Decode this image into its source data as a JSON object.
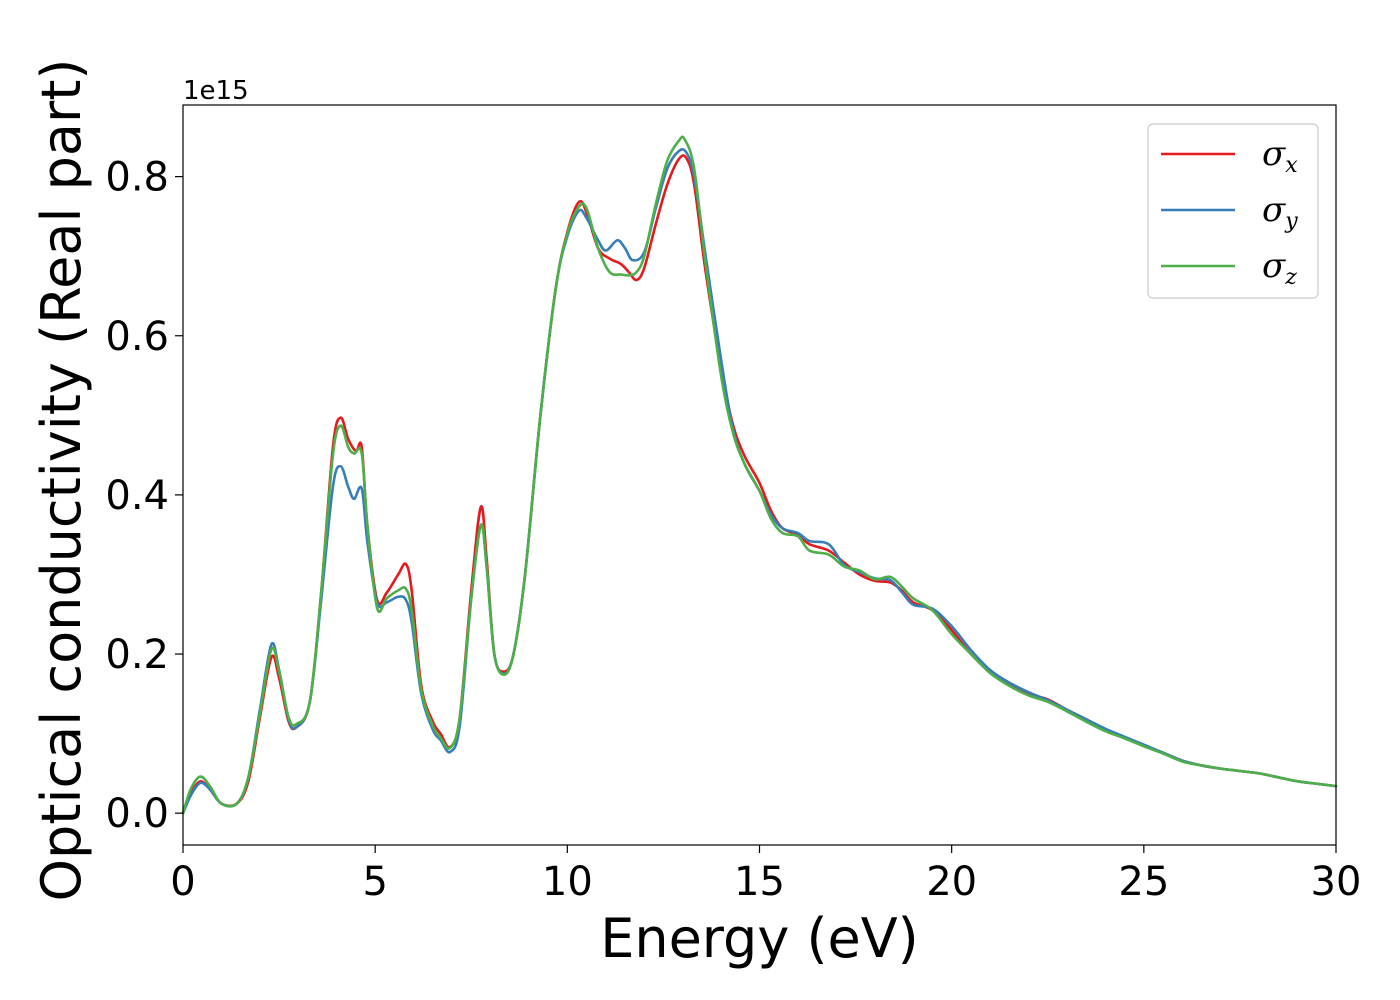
{
  "chart_data": {
    "type": "line",
    "xlabel": "Energy (eV)",
    "ylabel": "Optical conductivity (Real part)",
    "y_offset_text": "1e15",
    "xlim": [
      0,
      30
    ],
    "ylim": [
      -0.04,
      0.89
    ],
    "xticks": [
      0,
      5,
      10,
      15,
      20,
      25,
      30
    ],
    "xtick_labels": [
      "0",
      "5",
      "10",
      "15",
      "20",
      "25",
      "30"
    ],
    "yticks": [
      0.0,
      0.2,
      0.4,
      0.6,
      0.8
    ],
    "ytick_labels": [
      "0.0",
      "0.2",
      "0.4",
      "0.6",
      "0.8"
    ],
    "grid": false,
    "legend_position": "top-right",
    "series": [
      {
        "name": "σ_x",
        "symbol": "σ",
        "subscript": "x",
        "color": "#e41a1c",
        "points": [
          [
            0,
            0.0
          ],
          [
            0.2,
            0.025
          ],
          [
            0.45,
            0.04
          ],
          [
            0.7,
            0.03
          ],
          [
            1.0,
            0.012
          ],
          [
            1.4,
            0.012
          ],
          [
            1.7,
            0.04
          ],
          [
            2.0,
            0.12
          ],
          [
            2.3,
            0.196
          ],
          [
            2.5,
            0.17
          ],
          [
            2.75,
            0.115
          ],
          [
            2.95,
            0.108
          ],
          [
            3.3,
            0.14
          ],
          [
            3.6,
            0.28
          ],
          [
            3.9,
            0.46
          ],
          [
            4.1,
            0.497
          ],
          [
            4.3,
            0.47
          ],
          [
            4.5,
            0.455
          ],
          [
            4.65,
            0.46
          ],
          [
            4.8,
            0.36
          ],
          [
            5.05,
            0.268
          ],
          [
            5.3,
            0.277
          ],
          [
            5.6,
            0.3
          ],
          [
            5.8,
            0.313
          ],
          [
            5.95,
            0.28
          ],
          [
            6.2,
            0.16
          ],
          [
            6.5,
            0.115
          ],
          [
            6.7,
            0.1
          ],
          [
            6.95,
            0.083
          ],
          [
            7.2,
            0.12
          ],
          [
            7.5,
            0.28
          ],
          [
            7.75,
            0.385
          ],
          [
            7.9,
            0.32
          ],
          [
            8.1,
            0.2
          ],
          [
            8.35,
            0.178
          ],
          [
            8.6,
            0.2
          ],
          [
            8.9,
            0.3
          ],
          [
            9.3,
            0.5
          ],
          [
            9.7,
            0.66
          ],
          [
            10.0,
            0.73
          ],
          [
            10.3,
            0.768
          ],
          [
            10.5,
            0.755
          ],
          [
            10.8,
            0.71
          ],
          [
            11.1,
            0.697
          ],
          [
            11.4,
            0.69
          ],
          [
            11.6,
            0.68
          ],
          [
            11.8,
            0.67
          ],
          [
            12.0,
            0.685
          ],
          [
            12.3,
            0.74
          ],
          [
            12.6,
            0.79
          ],
          [
            12.9,
            0.822
          ],
          [
            13.1,
            0.823
          ],
          [
            13.3,
            0.79
          ],
          [
            13.6,
            0.68
          ],
          [
            14.0,
            0.56
          ],
          [
            14.3,
            0.49
          ],
          [
            14.6,
            0.45
          ],
          [
            15.0,
            0.415
          ],
          [
            15.3,
            0.38
          ],
          [
            15.6,
            0.358
          ],
          [
            16.0,
            0.35
          ],
          [
            16.3,
            0.338
          ],
          [
            16.8,
            0.33
          ],
          [
            17.2,
            0.315
          ],
          [
            17.6,
            0.3
          ],
          [
            18.0,
            0.292
          ],
          [
            18.4,
            0.29
          ],
          [
            18.7,
            0.28
          ],
          [
            19.0,
            0.265
          ],
          [
            19.5,
            0.255
          ],
          [
            20.0,
            0.23
          ],
          [
            20.5,
            0.2
          ],
          [
            21.0,
            0.178
          ],
          [
            21.5,
            0.162
          ],
          [
            22.0,
            0.15
          ],
          [
            22.5,
            0.143
          ],
          [
            23.0,
            0.13
          ],
          [
            23.5,
            0.118
          ],
          [
            24.0,
            0.105
          ],
          [
            24.5,
            0.095
          ],
          [
            25.0,
            0.085
          ],
          [
            25.5,
            0.076
          ],
          [
            26.0,
            0.066
          ],
          [
            26.5,
            0.06
          ],
          [
            27.0,
            0.056
          ],
          [
            27.5,
            0.053
          ],
          [
            28.0,
            0.05
          ],
          [
            28.5,
            0.045
          ],
          [
            29.0,
            0.04
          ],
          [
            29.5,
            0.037
          ],
          [
            30.0,
            0.034
          ]
        ]
      },
      {
        "name": "σ_y",
        "symbol": "σ",
        "subscript": "y",
        "color": "#377eb8",
        "points": [
          [
            0,
            0.0
          ],
          [
            0.2,
            0.022
          ],
          [
            0.45,
            0.038
          ],
          [
            0.7,
            0.03
          ],
          [
            1.0,
            0.012
          ],
          [
            1.4,
            0.012
          ],
          [
            1.7,
            0.045
          ],
          [
            2.0,
            0.13
          ],
          [
            2.3,
            0.212
          ],
          [
            2.5,
            0.18
          ],
          [
            2.75,
            0.118
          ],
          [
            2.95,
            0.108
          ],
          [
            3.3,
            0.14
          ],
          [
            3.6,
            0.27
          ],
          [
            3.9,
            0.41
          ],
          [
            4.1,
            0.436
          ],
          [
            4.3,
            0.41
          ],
          [
            4.45,
            0.395
          ],
          [
            4.65,
            0.408
          ],
          [
            4.8,
            0.34
          ],
          [
            5.05,
            0.265
          ],
          [
            5.3,
            0.265
          ],
          [
            5.6,
            0.272
          ],
          [
            5.8,
            0.268
          ],
          [
            5.95,
            0.24
          ],
          [
            6.2,
            0.15
          ],
          [
            6.5,
            0.105
          ],
          [
            6.7,
            0.092
          ],
          [
            6.95,
            0.077
          ],
          [
            7.2,
            0.11
          ],
          [
            7.5,
            0.27
          ],
          [
            7.75,
            0.362
          ],
          [
            7.9,
            0.31
          ],
          [
            8.1,
            0.2
          ],
          [
            8.35,
            0.175
          ],
          [
            8.6,
            0.2
          ],
          [
            8.9,
            0.3
          ],
          [
            9.3,
            0.5
          ],
          [
            9.7,
            0.66
          ],
          [
            10.0,
            0.725
          ],
          [
            10.3,
            0.757
          ],
          [
            10.5,
            0.748
          ],
          [
            10.8,
            0.72
          ],
          [
            11.0,
            0.707
          ],
          [
            11.3,
            0.72
          ],
          [
            11.5,
            0.71
          ],
          [
            11.7,
            0.695
          ],
          [
            12.0,
            0.705
          ],
          [
            12.3,
            0.76
          ],
          [
            12.6,
            0.81
          ],
          [
            12.9,
            0.832
          ],
          [
            13.1,
            0.83
          ],
          [
            13.3,
            0.8
          ],
          [
            13.6,
            0.7
          ],
          [
            14.0,
            0.57
          ],
          [
            14.3,
            0.485
          ],
          [
            14.6,
            0.44
          ],
          [
            15.0,
            0.405
          ],
          [
            15.3,
            0.375
          ],
          [
            15.6,
            0.358
          ],
          [
            16.0,
            0.352
          ],
          [
            16.3,
            0.342
          ],
          [
            16.8,
            0.338
          ],
          [
            17.2,
            0.312
          ],
          [
            17.6,
            0.303
          ],
          [
            18.0,
            0.295
          ],
          [
            18.4,
            0.293
          ],
          [
            18.7,
            0.278
          ],
          [
            19.0,
            0.262
          ],
          [
            19.5,
            0.257
          ],
          [
            20.0,
            0.235
          ],
          [
            20.5,
            0.205
          ],
          [
            21.0,
            0.18
          ],
          [
            21.5,
            0.164
          ],
          [
            22.0,
            0.152
          ],
          [
            22.5,
            0.142
          ],
          [
            23.0,
            0.13
          ],
          [
            23.5,
            0.118
          ],
          [
            24.0,
            0.106
          ],
          [
            24.5,
            0.096
          ],
          [
            25.0,
            0.086
          ],
          [
            25.5,
            0.076
          ],
          [
            26.0,
            0.066
          ],
          [
            26.5,
            0.06
          ],
          [
            27.0,
            0.056
          ],
          [
            27.5,
            0.053
          ],
          [
            28.0,
            0.05
          ],
          [
            28.5,
            0.045
          ],
          [
            29.0,
            0.04
          ],
          [
            29.5,
            0.037
          ],
          [
            30.0,
            0.034
          ]
        ]
      },
      {
        "name": "σ_z",
        "symbol": "σ",
        "subscript": "z",
        "color": "#4daf4a",
        "points": [
          [
            0,
            0.0
          ],
          [
            0.2,
            0.03
          ],
          [
            0.45,
            0.046
          ],
          [
            0.7,
            0.034
          ],
          [
            1.0,
            0.012
          ],
          [
            1.4,
            0.012
          ],
          [
            1.7,
            0.045
          ],
          [
            2.0,
            0.125
          ],
          [
            2.3,
            0.206
          ],
          [
            2.5,
            0.178
          ],
          [
            2.75,
            0.12
          ],
          [
            2.95,
            0.112
          ],
          [
            3.3,
            0.14
          ],
          [
            3.6,
            0.28
          ],
          [
            3.9,
            0.45
          ],
          [
            4.1,
            0.487
          ],
          [
            4.3,
            0.46
          ],
          [
            4.45,
            0.452
          ],
          [
            4.65,
            0.452
          ],
          [
            4.8,
            0.36
          ],
          [
            5.05,
            0.258
          ],
          [
            5.3,
            0.27
          ],
          [
            5.6,
            0.28
          ],
          [
            5.8,
            0.282
          ],
          [
            5.95,
            0.255
          ],
          [
            6.2,
            0.155
          ],
          [
            6.5,
            0.11
          ],
          [
            6.7,
            0.095
          ],
          [
            6.95,
            0.082
          ],
          [
            7.2,
            0.12
          ],
          [
            7.5,
            0.27
          ],
          [
            7.75,
            0.362
          ],
          [
            7.9,
            0.31
          ],
          [
            8.1,
            0.2
          ],
          [
            8.35,
            0.174
          ],
          [
            8.6,
            0.2
          ],
          [
            8.9,
            0.3
          ],
          [
            9.3,
            0.5
          ],
          [
            9.7,
            0.66
          ],
          [
            10.0,
            0.728
          ],
          [
            10.3,
            0.762
          ],
          [
            10.5,
            0.76
          ],
          [
            10.8,
            0.71
          ],
          [
            11.1,
            0.68
          ],
          [
            11.4,
            0.677
          ],
          [
            11.6,
            0.676
          ],
          [
            11.8,
            0.68
          ],
          [
            12.0,
            0.7
          ],
          [
            12.3,
            0.765
          ],
          [
            12.6,
            0.82
          ],
          [
            12.9,
            0.845
          ],
          [
            13.05,
            0.847
          ],
          [
            13.3,
            0.81
          ],
          [
            13.6,
            0.69
          ],
          [
            14.0,
            0.55
          ],
          [
            14.3,
            0.48
          ],
          [
            14.6,
            0.44
          ],
          [
            15.0,
            0.405
          ],
          [
            15.3,
            0.37
          ],
          [
            15.6,
            0.352
          ],
          [
            16.0,
            0.348
          ],
          [
            16.3,
            0.33
          ],
          [
            16.8,
            0.325
          ],
          [
            17.2,
            0.31
          ],
          [
            17.6,
            0.305
          ],
          [
            18.0,
            0.294
          ],
          [
            18.4,
            0.297
          ],
          [
            18.7,
            0.285
          ],
          [
            19.0,
            0.27
          ],
          [
            19.5,
            0.255
          ],
          [
            20.0,
            0.225
          ],
          [
            20.5,
            0.2
          ],
          [
            21.0,
            0.176
          ],
          [
            21.5,
            0.16
          ],
          [
            22.0,
            0.148
          ],
          [
            22.5,
            0.14
          ],
          [
            23.0,
            0.128
          ],
          [
            23.5,
            0.115
          ],
          [
            24.0,
            0.103
          ],
          [
            24.5,
            0.094
          ],
          [
            25.0,
            0.084
          ],
          [
            25.5,
            0.075
          ],
          [
            26.0,
            0.065
          ],
          [
            26.5,
            0.06
          ],
          [
            27.0,
            0.056
          ],
          [
            27.5,
            0.053
          ],
          [
            28.0,
            0.05
          ],
          [
            28.5,
            0.045
          ],
          [
            29.0,
            0.04
          ],
          [
            29.5,
            0.037
          ],
          [
            30.0,
            0.034
          ]
        ]
      }
    ]
  }
}
